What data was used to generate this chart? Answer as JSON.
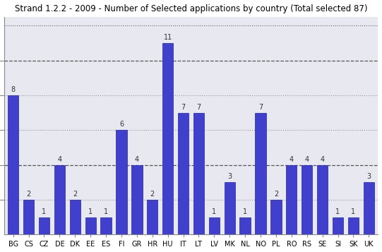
{
  "title": "Strand 1.2.2 - 2009 - Number of Selected applications by country (Total selected 87)",
  "categories": [
    "BG",
    "CS",
    "CZ",
    "DE",
    "DK",
    "EE",
    "ES",
    "FI",
    "GR",
    "HR",
    "HU",
    "IT",
    "LT",
    "LV",
    "MK",
    "NL",
    "NO",
    "PL",
    "RO",
    "RS",
    "SE",
    "SI",
    "SK",
    "UK"
  ],
  "values": [
    8,
    2,
    1,
    4,
    2,
    1,
    1,
    6,
    4,
    2,
    11,
    7,
    7,
    1,
    3,
    1,
    7,
    2,
    4,
    4,
    4,
    1,
    1,
    3
  ],
  "bar_color": "#4040CC",
  "bar_edge_color": "#2222AA",
  "background_color": "#FFFFFF",
  "plot_bg_color": "#E8E8F0",
  "ylim": [
    0,
    12.5
  ],
  "title_fontsize": 8.5,
  "label_fontsize": 7,
  "value_fontsize": 7,
  "gridlines": [
    {
      "y": 12,
      "style": ":",
      "color": "#666666",
      "lw": 0.8
    },
    {
      "y": 10,
      "style": "--",
      "color": "#555555",
      "lw": 0.9
    },
    {
      "y": 8,
      "style": ":",
      "color": "#999999",
      "lw": 0.8
    },
    {
      "y": 6,
      "style": ":",
      "color": "#999999",
      "lw": 0.8
    },
    {
      "y": 4,
      "style": "--",
      "color": "#555555",
      "lw": 0.9
    },
    {
      "y": 2,
      "style": ":",
      "color": "#999999",
      "lw": 0.8
    }
  ],
  "ytick_positions": [
    2,
    4,
    6,
    8,
    10
  ],
  "value_color": "#333333"
}
